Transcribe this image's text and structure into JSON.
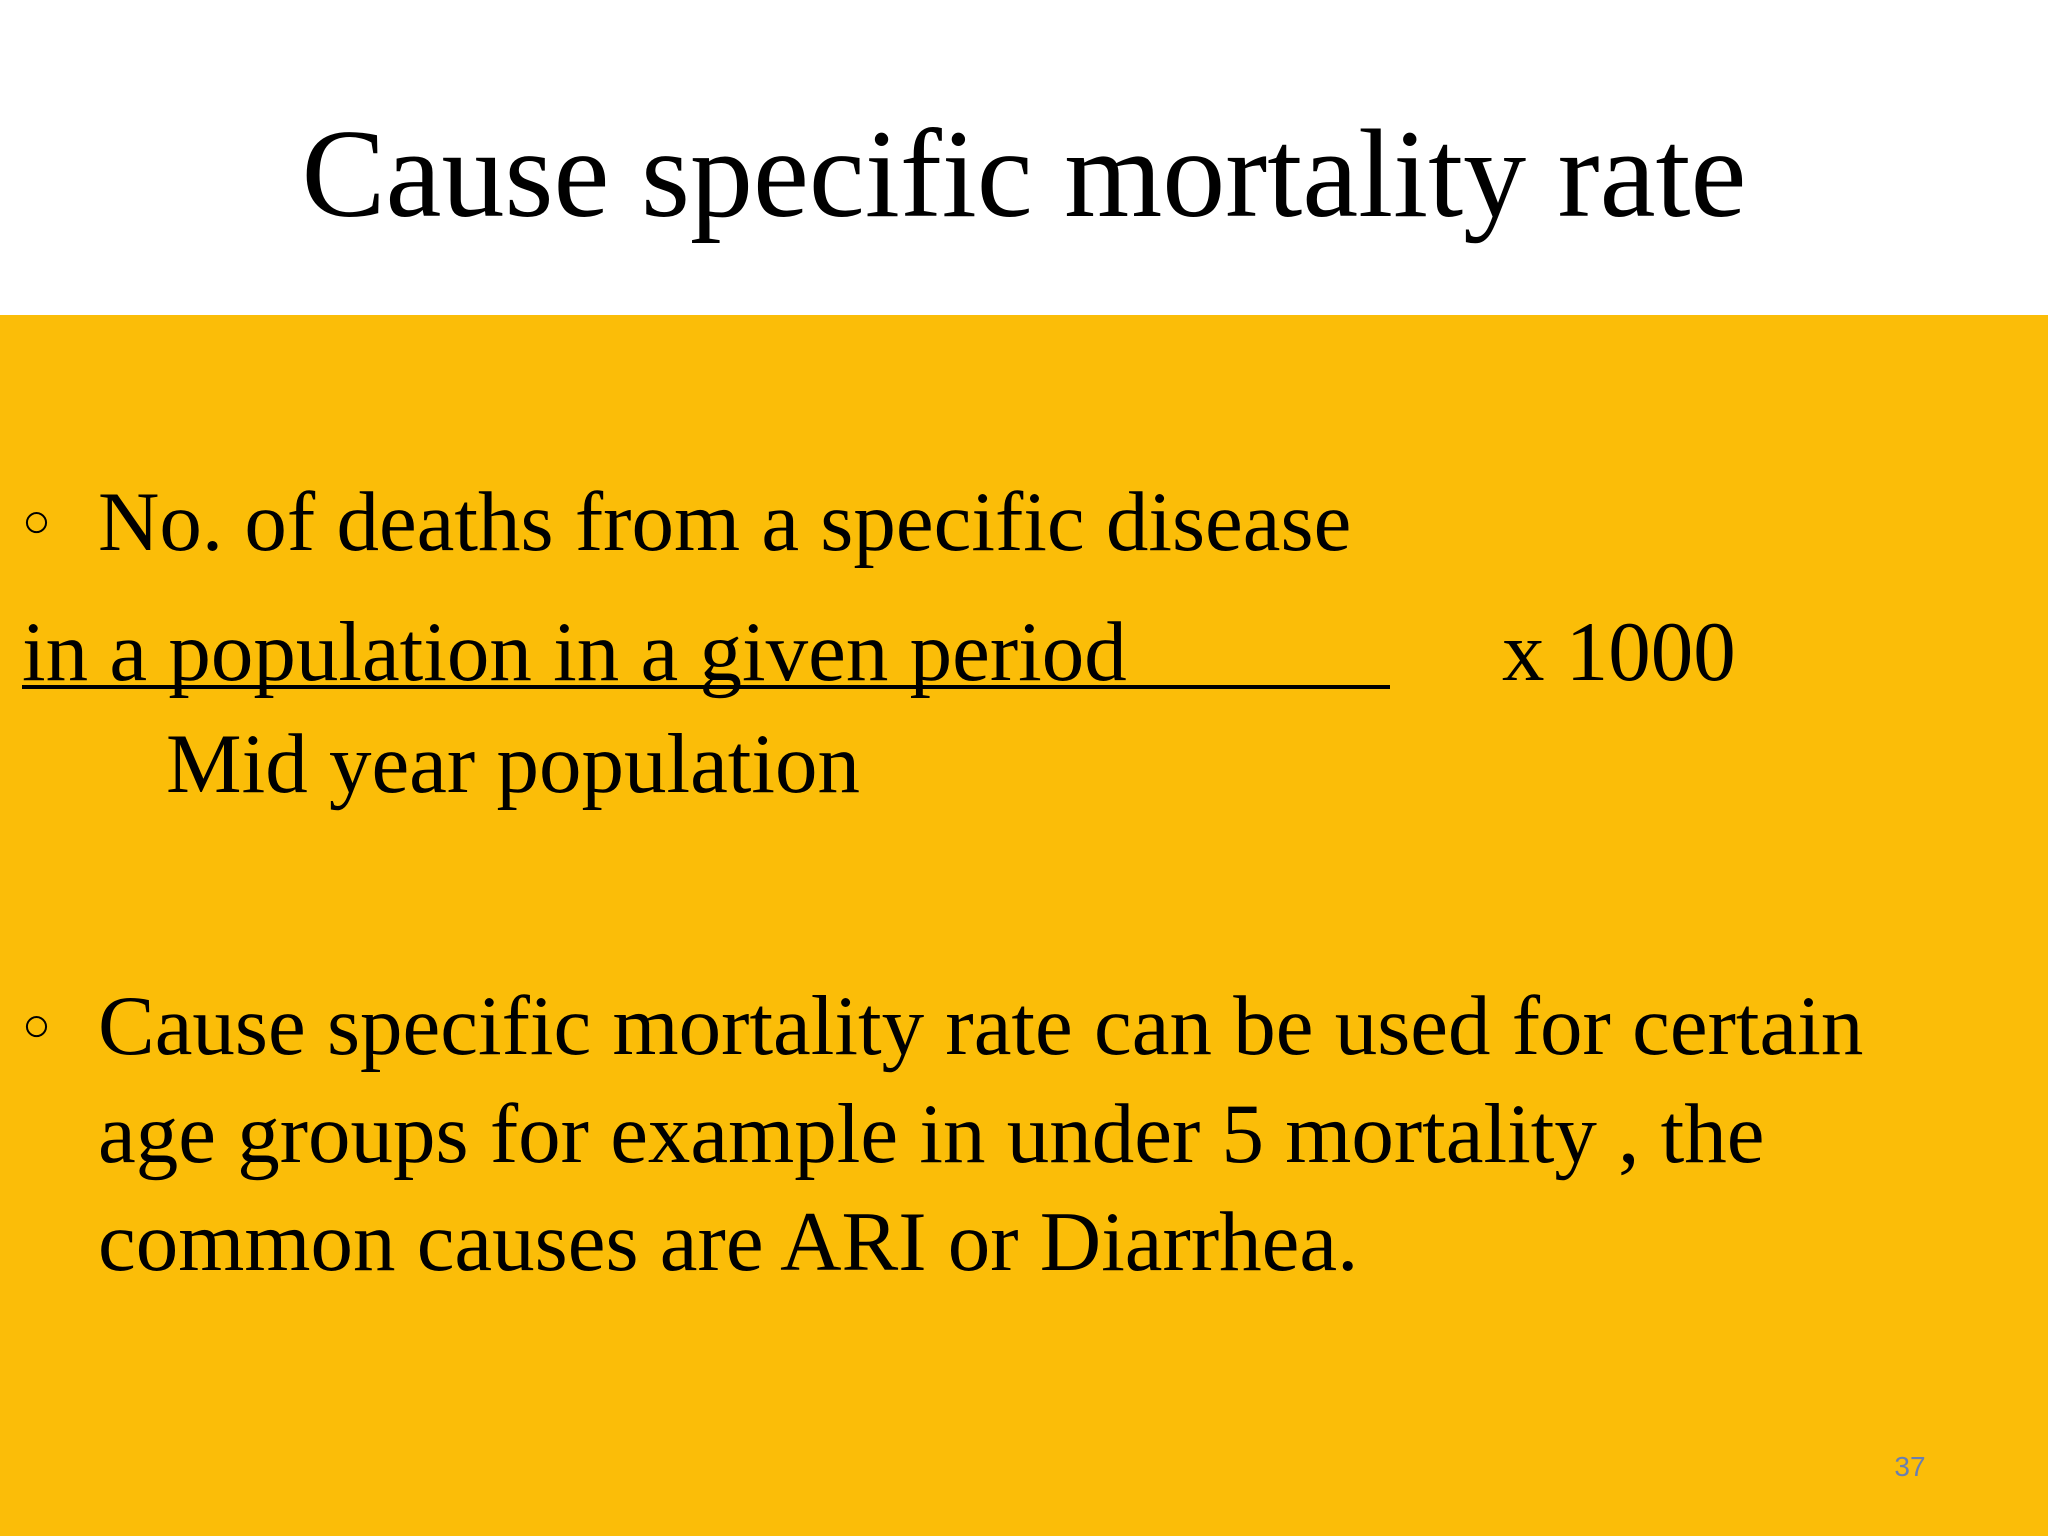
{
  "slide": {
    "title": "Cause specific mortality rate",
    "bullet_glyph": "○",
    "formula": {
      "numerator_line1": "No. of deaths from a specific disease",
      "numerator_line2": "in a population in a  given period",
      "multiplier": "x   1000",
      "denominator": "Mid year population"
    },
    "bullet2": {
      "line1": "Cause specific mortality rate can be used for certain",
      "line2": "age groups for example in under 5 mortality , the",
      "line3": "common causes are ARI or Diarrhea."
    },
    "page_number": "37"
  },
  "colors": {
    "title_background": "#ffffff",
    "body_background": "#fbbd08",
    "text": "#000000",
    "page_number": "#6a7fb0"
  }
}
